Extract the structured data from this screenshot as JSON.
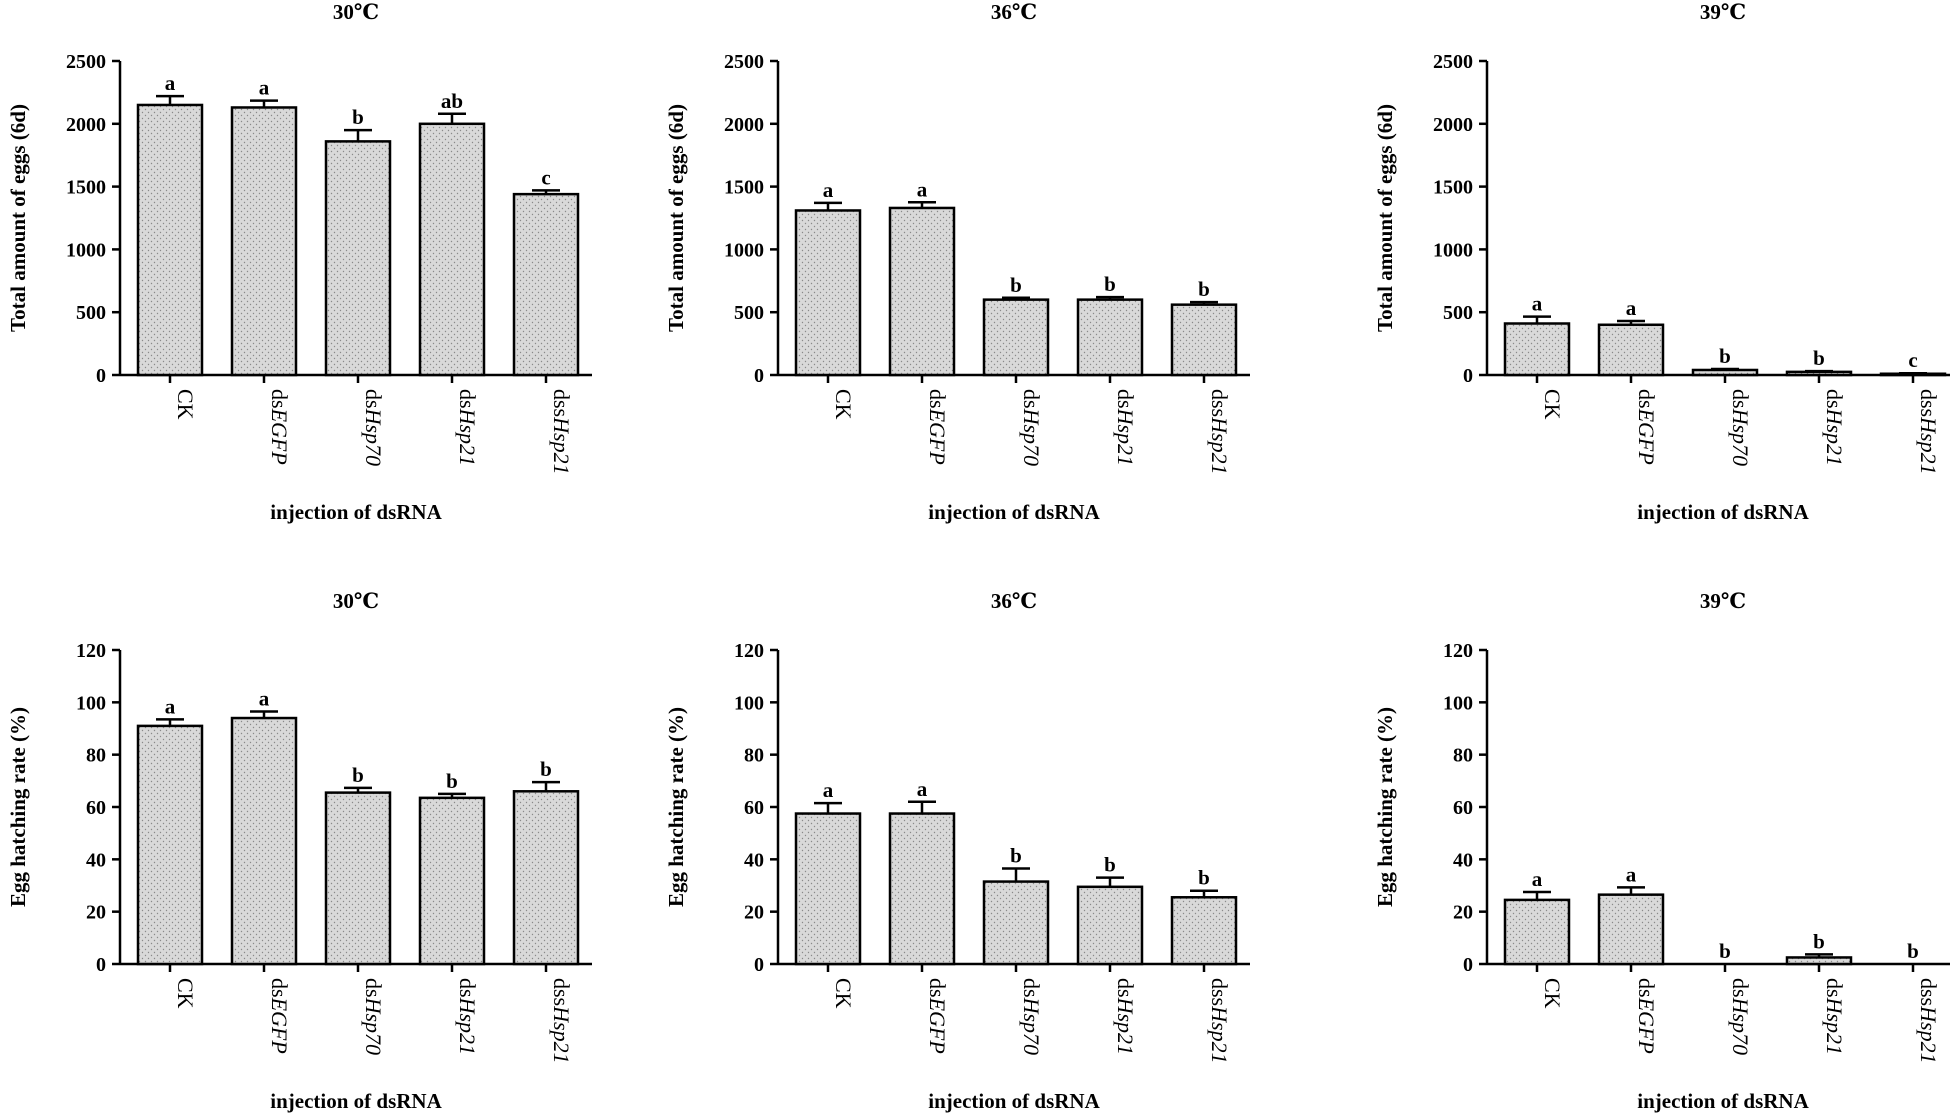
{
  "chart_data": [
    {
      "type": "bar",
      "title": "30℃",
      "xlabel": "injection of dsRNA",
      "ylabel": "Total amount of eggs (6d)",
      "ylim": [
        0,
        2500
      ],
      "yticks": [
        0,
        500,
        1000,
        1500,
        2000,
        2500
      ],
      "categories": [
        {
          "prefix": "CK",
          "gene": ""
        },
        {
          "prefix": "ds",
          "gene": "EGFP"
        },
        {
          "prefix": "ds",
          "gene": "Hsp70"
        },
        {
          "prefix": "ds",
          "gene": "Hsp21"
        },
        {
          "prefix": "dss",
          "gene": "Hsp21"
        }
      ],
      "values": [
        2150,
        2130,
        1860,
        2000,
        1440
      ],
      "errors": [
        70,
        55,
        90,
        80,
        30
      ],
      "labels": [
        "a",
        "a",
        "b",
        "ab",
        "c"
      ]
    },
    {
      "type": "bar",
      "title": "36℃",
      "xlabel": "injection of dsRNA",
      "ylabel": "Total amount of eggs (6d)",
      "ylim": [
        0,
        2500
      ],
      "yticks": [
        0,
        500,
        1000,
        1500,
        2000,
        2500
      ],
      "categories": [
        {
          "prefix": "CK",
          "gene": ""
        },
        {
          "prefix": "ds",
          "gene": "EGFP"
        },
        {
          "prefix": "ds",
          "gene": "Hsp70"
        },
        {
          "prefix": "ds",
          "gene": "Hsp21"
        },
        {
          "prefix": "dss",
          "gene": "Hsp21"
        }
      ],
      "values": [
        1310,
        1330,
        600,
        600,
        560
      ],
      "errors": [
        60,
        45,
        15,
        20,
        20
      ],
      "labels": [
        "a",
        "a",
        "b",
        "b",
        "b"
      ]
    },
    {
      "type": "bar",
      "title": "39℃",
      "xlabel": "injection of dsRNA",
      "ylabel": "Total amount of eggs (6d)",
      "ylim": [
        0,
        2500
      ],
      "yticks": [
        0,
        500,
        1000,
        1500,
        2000,
        2500
      ],
      "categories": [
        {
          "prefix": "CK",
          "gene": ""
        },
        {
          "prefix": "ds",
          "gene": "EGFP"
        },
        {
          "prefix": "ds",
          "gene": "Hsp70"
        },
        {
          "prefix": "ds",
          "gene": "Hsp21"
        },
        {
          "prefix": "dss",
          "gene": "Hsp21"
        }
      ],
      "values": [
        410,
        400,
        40,
        25,
        10
      ],
      "errors": [
        55,
        30,
        8,
        6,
        4
      ],
      "labels": [
        "a",
        "a",
        "b",
        "b",
        "c"
      ]
    },
    {
      "type": "bar",
      "title": "30℃",
      "xlabel": "injection of dsRNA",
      "ylabel": "Egg hatching rate (%)",
      "ylim": [
        0,
        120
      ],
      "yticks": [
        0,
        20,
        40,
        60,
        80,
        100,
        120
      ],
      "categories": [
        {
          "prefix": "CK",
          "gene": ""
        },
        {
          "prefix": "ds",
          "gene": "EGFP"
        },
        {
          "prefix": "ds",
          "gene": "Hsp70"
        },
        {
          "prefix": "ds",
          "gene": "Hsp21"
        },
        {
          "prefix": "dss",
          "gene": "Hsp21"
        }
      ],
      "values": [
        91,
        94,
        65.5,
        63.5,
        66
      ],
      "errors": [
        2.5,
        2.5,
        1.8,
        1.5,
        3.5
      ],
      "labels": [
        "a",
        "a",
        "b",
        "b",
        "b"
      ]
    },
    {
      "type": "bar",
      "title": "36℃",
      "xlabel": "injection of dsRNA",
      "ylabel": "Egg hatching rate (%)",
      "ylim": [
        0,
        120
      ],
      "yticks": [
        0,
        20,
        40,
        60,
        80,
        100,
        120
      ],
      "categories": [
        {
          "prefix": "CK",
          "gene": ""
        },
        {
          "prefix": "ds",
          "gene": "EGFP"
        },
        {
          "prefix": "ds",
          "gene": "Hsp70"
        },
        {
          "prefix": "ds",
          "gene": "Hsp21"
        },
        {
          "prefix": "dss",
          "gene": "Hsp21"
        }
      ],
      "values": [
        57.5,
        57.5,
        31.5,
        29.5,
        25.5
      ],
      "errors": [
        4,
        4.5,
        5,
        3.5,
        2.5
      ],
      "labels": [
        "a",
        "a",
        "b",
        "b",
        "b"
      ]
    },
    {
      "type": "bar",
      "title": "39℃",
      "xlabel": "injection of dsRNA",
      "ylabel": "Egg hatching rate (%)",
      "ylim": [
        0,
        120
      ],
      "yticks": [
        0,
        20,
        40,
        60,
        80,
        100,
        120
      ],
      "categories": [
        {
          "prefix": "CK",
          "gene": ""
        },
        {
          "prefix": "ds",
          "gene": "EGFP"
        },
        {
          "prefix": "ds",
          "gene": "Hsp70"
        },
        {
          "prefix": "ds",
          "gene": "Hsp21"
        },
        {
          "prefix": "dss",
          "gene": "Hsp21"
        }
      ],
      "values": [
        24.5,
        26.5,
        0,
        2.5,
        0
      ],
      "errors": [
        3,
        2.8,
        0,
        1.2,
        0
      ],
      "labels": [
        "a",
        "a",
        "b",
        "b",
        "b"
      ]
    }
  ]
}
